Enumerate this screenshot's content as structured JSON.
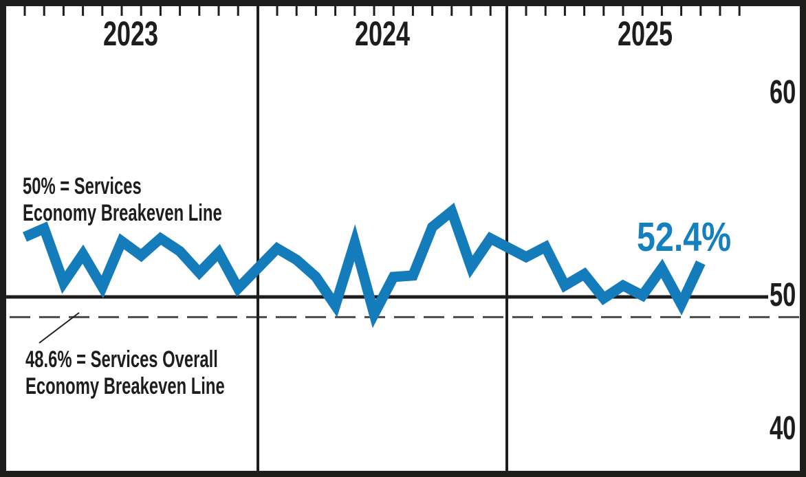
{
  "colors": {
    "line_blue": "#147CBA",
    "value_blue": "#1480BE",
    "ink_black": "#1d1d1b",
    "dashed_gray": "#4a4a4a",
    "background": "#ffffff"
  },
  "axis": {
    "year_labels": [
      "2023",
      "2024",
      "2025"
    ],
    "y_labels": [
      "60",
      "50",
      "40"
    ]
  },
  "annotations": {
    "breakeven_50": {
      "line1": "50% = Services",
      "line2": "Economy Breakeven Line"
    },
    "breakeven_486": {
      "line1": "48.6% = Services Overall",
      "line2": "Economy Breakeven Line"
    },
    "current_value": "52.4%"
  },
  "chart_data": {
    "type": "line",
    "title": "",
    "xlabel": "",
    "ylabel": "",
    "x_tick_interval": "monthly",
    "x_year_labels": [
      "2023",
      "2024",
      "2025"
    ],
    "y_ticks": [
      60,
      50,
      40
    ],
    "ylim_visible": [
      37.5,
      69.5
    ],
    "grid": "vertical year dividers only",
    "legend_position": "none",
    "months": [
      "Jan 2023",
      "Feb 2023",
      "Mar 2023",
      "Apr 2023",
      "May 2023",
      "Jun 2023",
      "Jul 2023",
      "Aug 2023",
      "Sep 2023",
      "Oct 2023",
      "Nov 2023",
      "Dec 2023",
      "Jan 2024",
      "Feb 2024",
      "Mar 2024",
      "Apr 2024",
      "May 2024",
      "Jun 2024",
      "Jul 2024",
      "Aug 2024",
      "Sep 2024",
      "Oct 2024",
      "Nov 2024",
      "Dec 2024",
      "Jan 2025",
      "Feb 2025",
      "Mar 2025",
      "Apr 2025",
      "May 2025",
      "Jun 2025",
      "Jul 2025",
      "Aug 2025",
      "Sep 2025",
      "Oct 2025"
    ],
    "series": [
      {
        "name": "Services PMI",
        "color": "#147CBA",
        "values": [
          54.2,
          54.8,
          51.0,
          53.0,
          50.7,
          53.9,
          52.9,
          54.1,
          53.2,
          51.7,
          53.1,
          50.6,
          53.4,
          52.6,
          51.4,
          49.4,
          53.8,
          48.8,
          51.4,
          51.5,
          54.9,
          56.0,
          52.1,
          54.1,
          52.8,
          53.5,
          50.8,
          51.6,
          49.9,
          50.8,
          50.1,
          52.0,
          49.5,
          52.4
        ]
      }
    ],
    "reference_lines": [
      {
        "value": 50.0,
        "style": "solid",
        "label": "50% = Services Economy Breakeven Line"
      },
      {
        "value": 48.6,
        "style": "dashed",
        "label": "48.6% = Services Overall Economy Breakeven Line"
      }
    ],
    "last_point_label": "52.4%"
  }
}
